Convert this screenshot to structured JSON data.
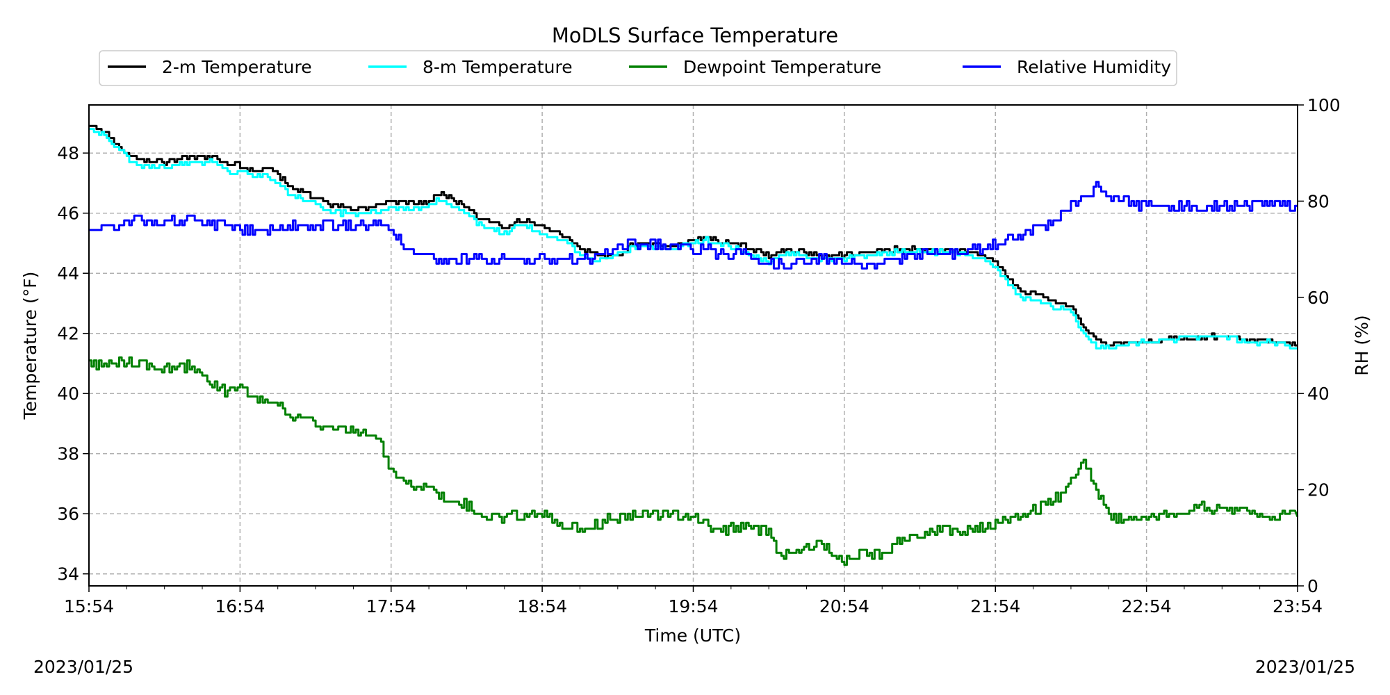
{
  "chart_data": {
    "type": "line",
    "title": "MoDLS Surface Temperature",
    "xlabel": "Time (UTC)",
    "ylabel": "Temperature ($^\\circ$F)",
    "ylabel_display": "Temperature (°F)",
    "y2label": "RH (%)",
    "date_left": "2023/01/25",
    "date_right": "2023/01/25",
    "x_ticks": [
      "15:54",
      "16:54",
      "17:54",
      "18:54",
      "19:54",
      "20:54",
      "21:54",
      "22:54",
      "23:54"
    ],
    "xlim_minutes": [
      0,
      480
    ],
    "ylim": [
      33.6,
      49.6
    ],
    "y_ticks": [
      34,
      36,
      38,
      40,
      42,
      44,
      46,
      48
    ],
    "y2lim": [
      0,
      100
    ],
    "y2_ticks": [
      0,
      20,
      40,
      60,
      80,
      100
    ],
    "grid": true,
    "legend_position": "top",
    "series": [
      {
        "name": "2-m Temperature",
        "color": "#000000",
        "axis": "left",
        "x_minutes": [
          0,
          6,
          10,
          16,
          20,
          30,
          40,
          45,
          50,
          55,
          60,
          65,
          70,
          75,
          80,
          85,
          90,
          95,
          100,
          110,
          120,
          130,
          135,
          140,
          150,
          155,
          160,
          165,
          170,
          175,
          180,
          190,
          195,
          200,
          205,
          210,
          215,
          220,
          230,
          240,
          245,
          250,
          255,
          260,
          270,
          275,
          280,
          290,
          300,
          310,
          320,
          330,
          340,
          345,
          350,
          355,
          360,
          365,
          370,
          380,
          390,
          395,
          400,
          405,
          410,
          415,
          420,
          430,
          440,
          450,
          460,
          470,
          480
        ],
        "values": [
          48.9,
          48.7,
          48.3,
          47.9,
          47.8,
          47.7,
          47.9,
          47.8,
          47.9,
          47.6,
          47.6,
          47.4,
          47.5,
          47.3,
          46.8,
          46.7,
          46.5,
          46.3,
          46.2,
          46.2,
          46.4,
          46.3,
          46.4,
          46.7,
          46.2,
          45.8,
          45.7,
          45.5,
          45.8,
          45.7,
          45.6,
          45.2,
          44.8,
          44.7,
          44.5,
          44.6,
          44.9,
          45.0,
          44.9,
          45.1,
          45.2,
          45.1,
          45.0,
          44.9,
          44.6,
          44.7,
          44.8,
          44.6,
          44.6,
          44.7,
          44.8,
          44.8,
          44.8,
          44.8,
          44.7,
          44.6,
          44.4,
          43.8,
          43.4,
          43.2,
          42.9,
          42.2,
          41.8,
          41.6,
          41.7,
          41.7,
          41.7,
          41.8,
          41.9,
          41.9,
          41.8,
          41.8,
          41.6
        ]
      },
      {
        "name": "8-m Temperature",
        "color": "#00ffff",
        "axis": "left",
        "x_minutes": [
          0,
          6,
          10,
          16,
          20,
          30,
          40,
          45,
          50,
          55,
          60,
          65,
          70,
          75,
          80,
          85,
          90,
          95,
          100,
          110,
          120,
          130,
          135,
          140,
          150,
          155,
          160,
          165,
          170,
          175,
          180,
          190,
          195,
          200,
          205,
          210,
          215,
          220,
          230,
          240,
          245,
          250,
          255,
          260,
          270,
          275,
          280,
          290,
          300,
          310,
          320,
          330,
          340,
          345,
          350,
          355,
          360,
          365,
          370,
          380,
          390,
          395,
          400,
          405,
          410,
          415,
          420,
          430,
          440,
          450,
          460,
          470,
          480
        ],
        "values": [
          48.8,
          48.6,
          48.2,
          47.8,
          47.6,
          47.5,
          47.7,
          47.6,
          47.8,
          47.3,
          47.4,
          47.2,
          47.3,
          47.0,
          46.6,
          46.5,
          46.3,
          46.1,
          46.0,
          46.0,
          46.2,
          46.1,
          46.3,
          46.5,
          46.0,
          45.6,
          45.5,
          45.3,
          45.6,
          45.5,
          45.3,
          45.0,
          44.6,
          44.4,
          44.5,
          44.7,
          44.8,
          44.9,
          44.8,
          45.0,
          45.1,
          45.0,
          44.9,
          44.7,
          44.4,
          44.6,
          44.7,
          44.4,
          44.5,
          44.6,
          44.7,
          44.7,
          44.7,
          44.7,
          44.6,
          44.5,
          44.2,
          43.6,
          43.2,
          43.0,
          42.7,
          42.0,
          41.6,
          41.5,
          41.6,
          41.7,
          41.7,
          41.8,
          41.9,
          41.9,
          41.7,
          41.7,
          41.5
        ]
      },
      {
        "name": "Dewpoint Temperature",
        "color": "#008000",
        "axis": "left",
        "x_minutes": [
          0,
          10,
          20,
          30,
          40,
          50,
          55,
          60,
          65,
          70,
          75,
          80,
          85,
          90,
          95,
          100,
          110,
          115,
          120,
          125,
          130,
          135,
          140,
          150,
          155,
          160,
          170,
          180,
          190,
          200,
          210,
          220,
          230,
          240,
          250,
          260,
          270,
          275,
          280,
          290,
          300,
          310,
          315,
          320,
          330,
          340,
          350,
          360,
          370,
          380,
          385,
          390,
          395,
          400,
          405,
          410,
          420,
          430,
          440,
          450,
          460,
          470,
          480
        ],
        "values": [
          41.0,
          41.0,
          41.0,
          40.8,
          40.9,
          40.3,
          40.0,
          40.2,
          39.9,
          39.7,
          39.6,
          39.3,
          39.1,
          39.0,
          38.9,
          38.8,
          38.7,
          38.5,
          37.3,
          37.0,
          36.8,
          36.9,
          36.6,
          36.3,
          35.9,
          35.9,
          35.9,
          36.0,
          35.5,
          35.6,
          35.9,
          36.0,
          36.0,
          35.9,
          35.4,
          35.6,
          35.4,
          34.6,
          34.7,
          35.0,
          34.5,
          34.7,
          34.6,
          35.0,
          35.3,
          35.5,
          35.4,
          35.7,
          35.9,
          36.3,
          36.6,
          37.2,
          37.7,
          36.9,
          35.9,
          35.8,
          35.9,
          36.0,
          36.2,
          36.2,
          36.1,
          35.9,
          35.9
        ]
      },
      {
        "name": "Relative Humidity",
        "color": "#0000ff",
        "axis": "right",
        "x_minutes": [
          0,
          5,
          10,
          15,
          20,
          25,
          30,
          35,
          40,
          45,
          50,
          55,
          60,
          70,
          80,
          90,
          100,
          110,
          115,
          120,
          125,
          130,
          135,
          140,
          150,
          160,
          170,
          180,
          190,
          200,
          205,
          210,
          215,
          220,
          230,
          240,
          245,
          250,
          255,
          260,
          270,
          280,
          290,
          300,
          310,
          320,
          330,
          340,
          345,
          350,
          355,
          360,
          365,
          370,
          375,
          380,
          385,
          390,
          395,
          400,
          405,
          410,
          420,
          430,
          440,
          450,
          460,
          470,
          480
        ],
        "values": [
          74,
          74,
          75,
          76,
          76,
          76,
          76,
          76,
          76,
          75,
          75,
          75,
          74,
          74,
          75,
          75,
          75,
          75,
          75,
          74,
          71,
          69,
          68,
          68,
          68,
          68,
          68,
          68,
          68,
          68,
          69,
          70,
          71,
          71,
          71,
          70,
          70,
          69,
          69,
          69,
          67,
          67,
          68,
          67,
          67,
          68,
          69,
          69,
          69,
          70,
          70,
          71,
          72,
          73,
          74,
          75,
          77,
          79,
          81,
          83,
          81,
          80,
          79,
          79,
          79,
          79,
          79,
          79,
          79
        ]
      }
    ]
  }
}
